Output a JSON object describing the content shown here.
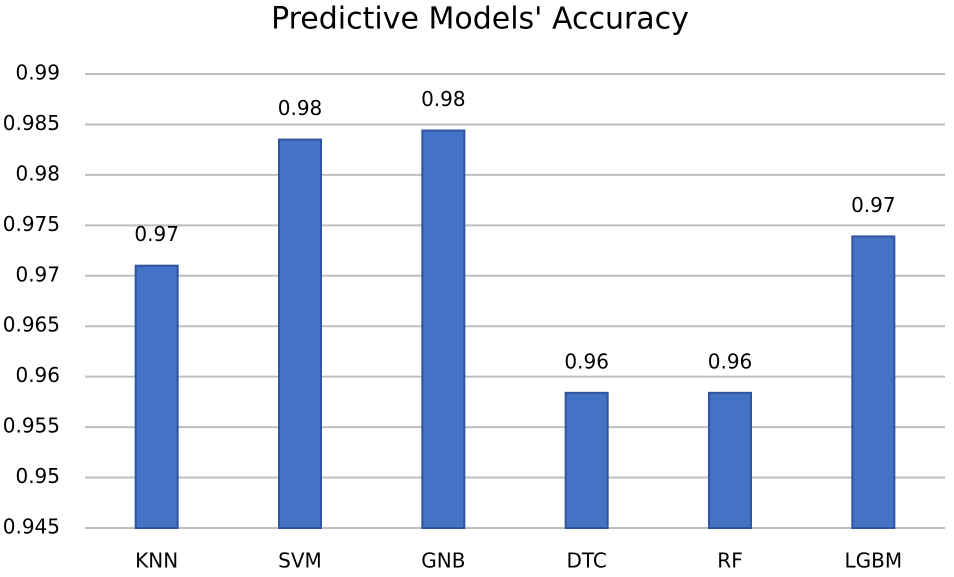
{
  "chart_data": {
    "type": "bar",
    "title": "Predictive Models' Accuracy",
    "categories": [
      "KNN",
      "SVM",
      "GNB",
      "DTC",
      "RF",
      "LGBM"
    ],
    "values": [
      0.971,
      0.9835,
      0.9844,
      0.9584,
      0.9584,
      0.9739
    ],
    "value_labels": [
      "0.97",
      "0.98",
      "0.98",
      "0.96",
      "0.96",
      "0.97"
    ],
    "color": "#4472c4",
    "ylim": [
      0.945,
      0.99
    ],
    "yticks": [
      0.945,
      0.95,
      0.955,
      0.96,
      0.965,
      0.97,
      0.975,
      0.98,
      0.985,
      0.99
    ],
    "grid": true
  }
}
